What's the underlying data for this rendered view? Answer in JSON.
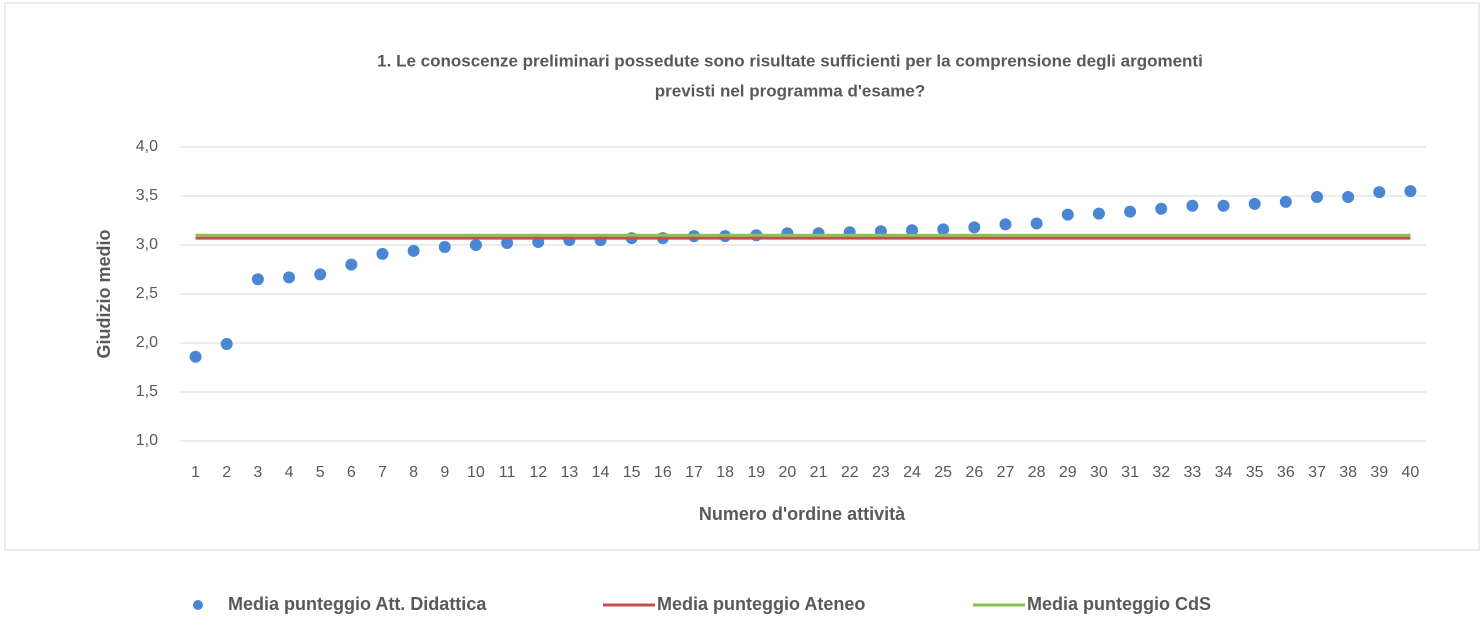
{
  "chart_data": {
    "type": "scatter",
    "title": [
      "1. Le conoscenze preliminari possedute sono risultate sufficienti per la comprensione degli argomenti",
      "previsti nel programma d'esame?"
    ],
    "x_label": "Numero d'ordine attività",
    "y_label": "Giudizio medio",
    "categories": [
      "1",
      "2",
      "3",
      "4",
      "5",
      "6",
      "7",
      "8",
      "9",
      "10",
      "11",
      "12",
      "13",
      "14",
      "15",
      "16",
      "17",
      "18",
      "19",
      "20",
      "21",
      "22",
      "23",
      "24",
      "25",
      "26",
      "27",
      "28",
      "29",
      "30",
      "31",
      "32",
      "33",
      "34",
      "35",
      "36",
      "37",
      "38",
      "39",
      "40"
    ],
    "series": [
      {
        "name": "Media punteggio Att. Didattica",
        "color": "#4a86d4",
        "kind": "marker",
        "values": [
          1.86,
          1.99,
          2.65,
          2.67,
          2.7,
          2.8,
          2.91,
          2.94,
          2.98,
          3.0,
          3.02,
          3.03,
          3.05,
          3.05,
          3.07,
          3.07,
          3.09,
          3.09,
          3.1,
          3.12,
          3.12,
          3.13,
          3.14,
          3.15,
          3.16,
          3.18,
          3.21,
          3.22,
          3.31,
          3.32,
          3.34,
          3.37,
          3.4,
          3.4,
          3.42,
          3.44,
          3.49,
          3.49,
          3.54,
          3.55
        ]
      },
      {
        "name": "Media punteggio Ateneo",
        "color": "#c0504d",
        "kind": "line",
        "values": [
          3.07,
          3.07,
          3.07,
          3.07,
          3.07,
          3.07,
          3.07,
          3.07,
          3.07,
          3.07,
          3.07,
          3.07,
          3.07,
          3.07,
          3.07,
          3.07,
          3.07,
          3.07,
          3.07,
          3.07,
          3.07,
          3.07,
          3.07,
          3.07,
          3.07,
          3.07,
          3.07,
          3.07,
          3.07,
          3.07,
          3.07,
          3.07,
          3.07,
          3.07,
          3.07,
          3.07,
          3.07,
          3.07,
          3.07,
          3.07
        ]
      },
      {
        "name": "Media punteggio CdS",
        "color": "#8dc153",
        "kind": "line",
        "values": [
          3.1,
          3.1,
          3.1,
          3.1,
          3.1,
          3.1,
          3.1,
          3.1,
          3.1,
          3.1,
          3.1,
          3.1,
          3.1,
          3.1,
          3.1,
          3.1,
          3.1,
          3.1,
          3.1,
          3.1,
          3.1,
          3.1,
          3.1,
          3.1,
          3.1,
          3.1,
          3.1,
          3.1,
          3.1,
          3.1,
          3.1,
          3.1,
          3.1,
          3.1,
          3.1,
          3.1,
          3.1,
          3.1,
          3.1,
          3.1
        ]
      }
    ],
    "ylim": [
      1.0,
      4.0
    ],
    "yticks": [
      {
        "value": 1.0,
        "label": "1,0"
      },
      {
        "value": 1.5,
        "label": "1,5"
      },
      {
        "value": 2.0,
        "label": "2,0"
      },
      {
        "value": 2.5,
        "label": "2,5"
      },
      {
        "value": 3.0,
        "label": "3,0"
      },
      {
        "value": 3.5,
        "label": "3,5"
      },
      {
        "value": 4.0,
        "label": "4,0"
      }
    ],
    "grid": true,
    "legend": "bottom"
  }
}
